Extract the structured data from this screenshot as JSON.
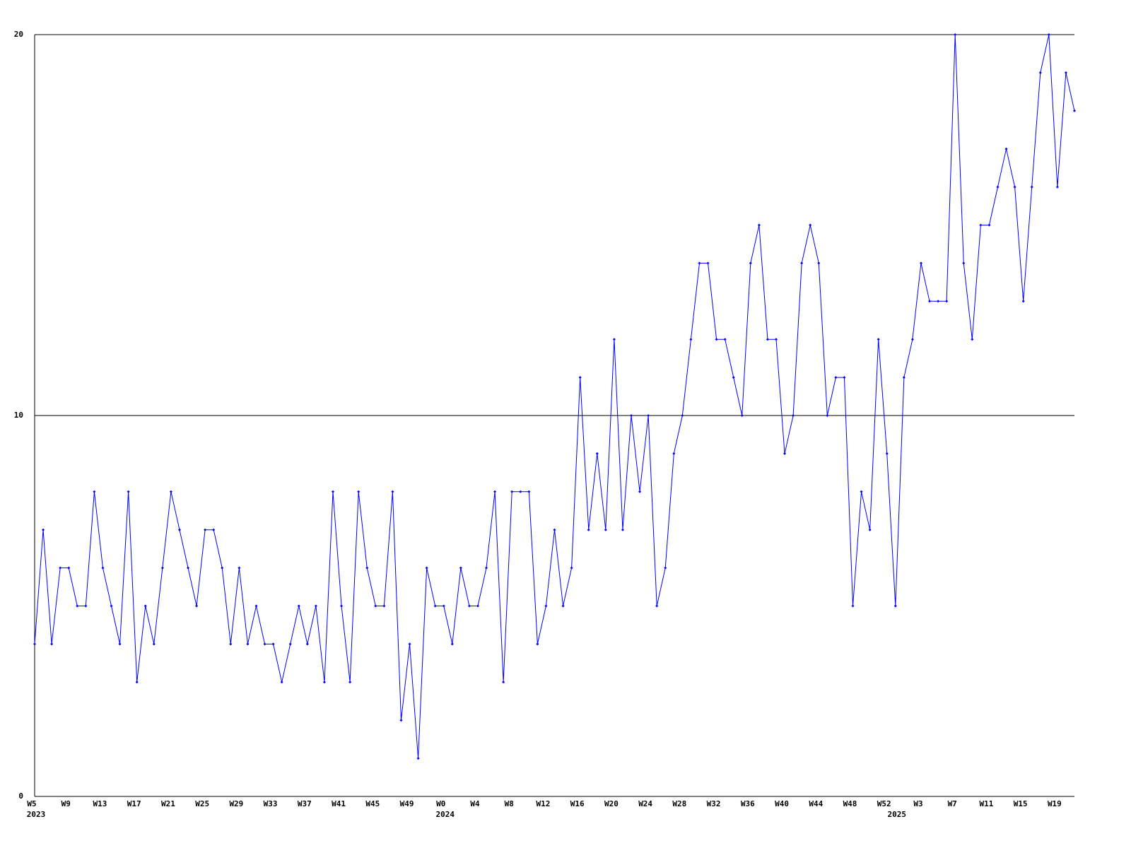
{
  "chart_data": {
    "type": "line",
    "categories": [
      "W5",
      null,
      null,
      null,
      "W9",
      null,
      null,
      null,
      "W13",
      null,
      null,
      null,
      "W17",
      null,
      null,
      null,
      "W21",
      null,
      null,
      null,
      "W25",
      null,
      null,
      null,
      "W29",
      null,
      null,
      null,
      "W33",
      null,
      null,
      null,
      "W37",
      null,
      null,
      null,
      "W41",
      null,
      null,
      null,
      "W45",
      null,
      null,
      null,
      "W49",
      null,
      null,
      null,
      "W0",
      null,
      null,
      null,
      "W4",
      null,
      null,
      null,
      "W8",
      null,
      null,
      null,
      "W12",
      null,
      null,
      null,
      "W16",
      null,
      null,
      null,
      "W20",
      null,
      null,
      null,
      "W24",
      null,
      null,
      null,
      "W28",
      null,
      null,
      null,
      "W32",
      null,
      null,
      null,
      "W36",
      null,
      null,
      null,
      "W40",
      null,
      null,
      null,
      "W44",
      null,
      null,
      null,
      "W48",
      null,
      null,
      null,
      "W52",
      null,
      null,
      null,
      "W3",
      null,
      null,
      null,
      "W7",
      null,
      null,
      null,
      "W11",
      null,
      null,
      null,
      "W15",
      null,
      null,
      null,
      "W19",
      null,
      null
    ],
    "category_groups": [
      {
        "label": "2023",
        "start": 0
      },
      {
        "label": "2024",
        "start": 48
      },
      {
        "label": "2025",
        "start": 101
      }
    ],
    "series": [
      {
        "color": "#0000ff",
        "values": [
          4,
          7,
          4,
          6,
          6,
          5,
          5,
          8,
          6,
          5,
          4,
          8,
          3,
          5,
          4,
          6,
          8,
          7,
          6,
          5,
          7,
          7,
          6,
          4,
          6,
          4,
          5,
          4,
          4,
          3,
          4,
          5,
          4,
          5,
          3,
          8,
          5,
          3,
          8,
          6,
          5,
          5,
          8,
          2,
          4,
          1,
          6,
          5,
          5,
          4,
          6,
          5,
          5,
          6,
          8,
          3,
          8,
          8,
          8,
          4,
          5,
          7,
          5,
          6,
          11,
          7,
          9,
          7,
          12,
          7,
          10,
          8,
          10,
          5,
          6,
          9,
          10,
          12,
          14,
          14,
          12,
          12,
          11,
          10,
          14,
          15,
          12,
          12,
          9,
          10,
          14,
          15,
          14,
          10,
          11,
          11,
          5,
          8,
          7,
          12,
          9,
          5,
          11,
          12,
          14,
          13,
          13,
          13,
          20,
          14,
          12,
          15,
          15,
          16,
          17,
          16,
          13,
          16,
          19,
          20,
          16,
          19,
          18
        ]
      }
    ],
    "ylim": [
      0,
      20
    ],
    "yticks": [
      0,
      10,
      20
    ],
    "grid": true
  }
}
